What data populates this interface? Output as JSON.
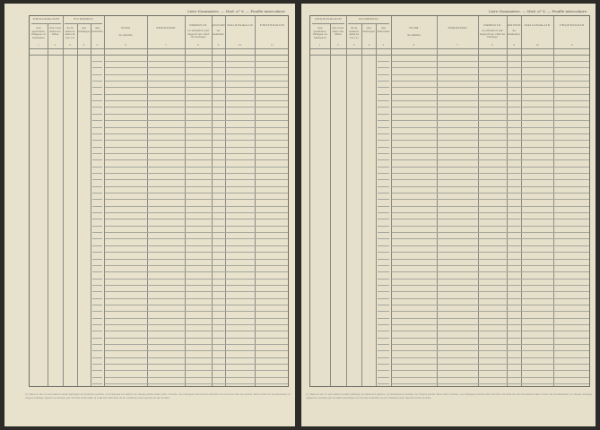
{
  "document": {
    "header_title": "Liste Nominative. — Mod. n° 8. — Feuille intercalaire",
    "groups": {
      "designation": "DÉSIGNATION",
      "numeros": "NUMÉROS"
    },
    "columns": [
      {
        "title": "",
        "sub": "des quartiers, villages ou hameaux",
        "number": "1"
      },
      {
        "title": "",
        "sub": "des rues dans les villes",
        "number": "2"
      },
      {
        "title": "",
        "sub": "de la maison dans la rue (1)",
        "number": "3"
      },
      {
        "title": "",
        "sub": "des ménages",
        "number": "4"
      },
      {
        "title": "",
        "sub": "des individus",
        "number": "5"
      },
      {
        "title": "NOM",
        "sub": "de famille",
        "number": "6"
      },
      {
        "title": "PRÉNOMS",
        "sub": "",
        "number": "7"
      },
      {
        "title": "PARENTÉ",
        "sub": "ou situation par rapport au chef de ménage",
        "number": "8"
      },
      {
        "title": "ANNÉE",
        "sub": "de naissance",
        "number": "9"
      },
      {
        "title": "NATIONALITÉ",
        "sub": "",
        "number": "10"
      },
      {
        "title": "PROFESSION",
        "sub": "",
        "number": "11"
      }
    ],
    "footnote": "(1) Dans le cas où une maison serait partagée en plusieurs parties, on indiquera le numéro de chaque partie dans cette colonne. Les ménages doivent être inscrits à la suite les uns des autres dans l'ordre de recensement, et chaque ménage séparé du suivant par un trait horizontal; le total des individus de la commune sera reporté en fin de liste."
  }
}
